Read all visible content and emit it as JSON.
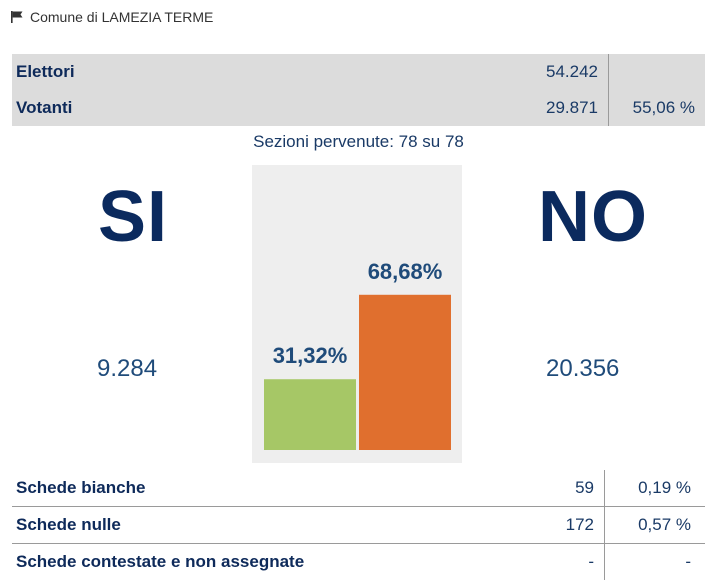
{
  "header": {
    "title": "Comune di LAMEZIA TERME",
    "icon": "flag-icon"
  },
  "summary": {
    "rows": [
      {
        "label": "Elettori",
        "value": "54.242",
        "percent": ""
      },
      {
        "label": "Votanti",
        "value": "29.871",
        "percent": "55,06 %"
      }
    ]
  },
  "sections_text": "Sezioni pervenute: 78 su 78",
  "results": {
    "si_label": "SI",
    "no_label": "NO",
    "si_count": "9.284",
    "no_count": "20.356"
  },
  "chart_data": {
    "type": "bar",
    "categories": [
      "SI",
      "NO"
    ],
    "values": [
      31.32,
      68.68
    ],
    "labels": [
      "31,32%",
      "68,68%"
    ],
    "colors": [
      "#a6c766",
      "#e06f2e"
    ],
    "ylim": [
      0,
      100
    ]
  },
  "bottom": {
    "rows": [
      {
        "label": "Schede bianche",
        "value": "59",
        "percent": "0,19 %"
      },
      {
        "label": "Schede nulle",
        "value": "172",
        "percent": "0,57 %"
      },
      {
        "label": "Schede contestate e non assegnate",
        "value": "-",
        "percent": "-"
      }
    ]
  }
}
